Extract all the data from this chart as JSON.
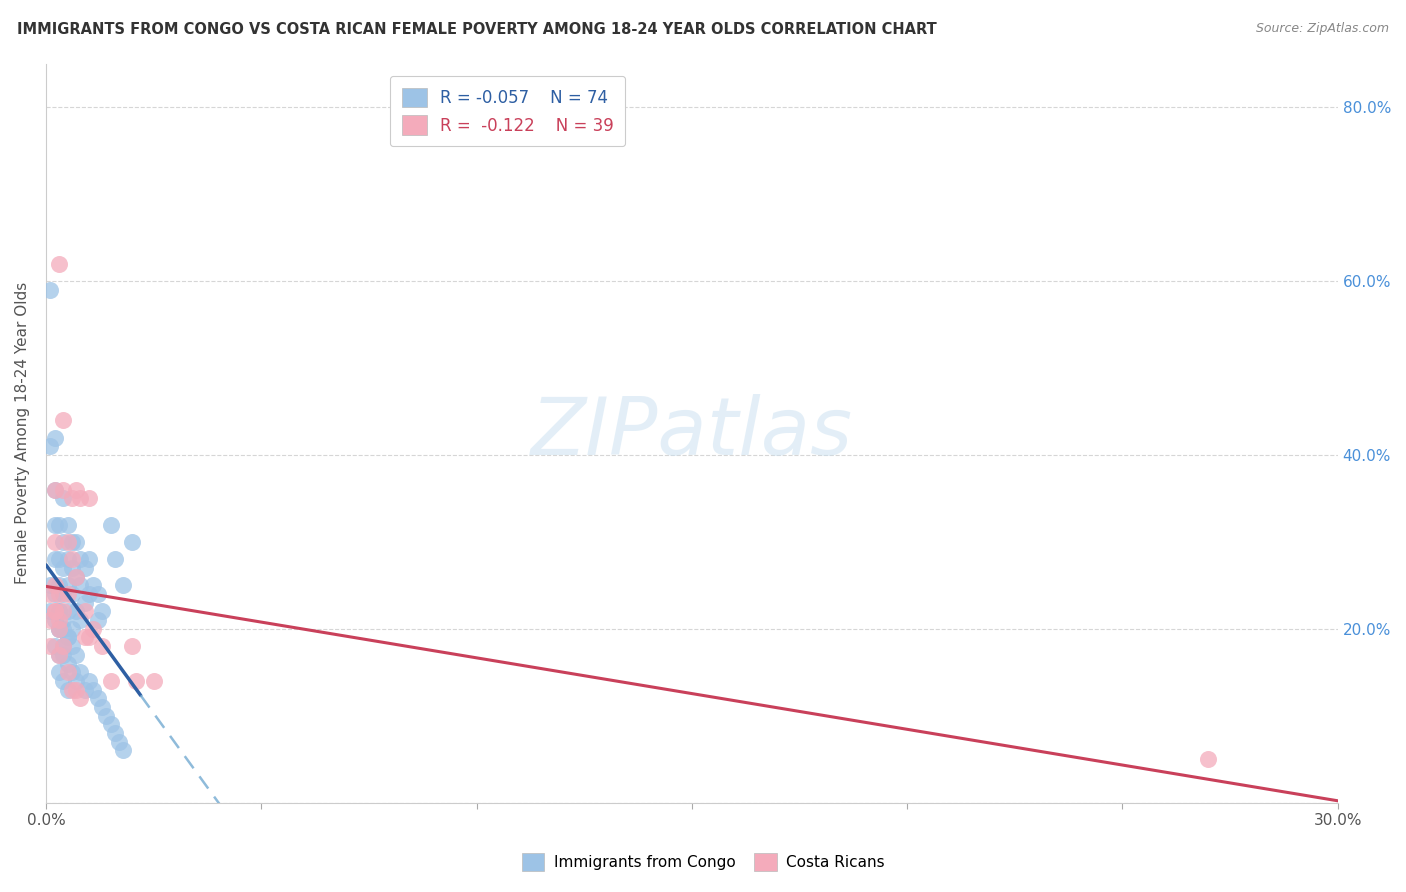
{
  "title": "IMMIGRANTS FROM CONGO VS COSTA RICAN FEMALE POVERTY AMONG 18-24 YEAR OLDS CORRELATION CHART",
  "source": "Source: ZipAtlas.com",
  "ylabel": "Female Poverty Among 18-24 Year Olds",
  "xlim": [
    0.0,
    0.3
  ],
  "ylim": [
    0.0,
    0.85
  ],
  "x_ticks": [
    0.0,
    0.05,
    0.1,
    0.15,
    0.2,
    0.25,
    0.3
  ],
  "y_ticks": [
    0.0,
    0.2,
    0.4,
    0.6,
    0.8
  ],
  "y_tick_labels_right": [
    "",
    "20.0%",
    "40.0%",
    "60.0%",
    "80.0%"
  ],
  "blue_color": "#9DC3E6",
  "pink_color": "#F4ABBB",
  "blue_line_color": "#2E5FA3",
  "pink_line_color": "#C9405A",
  "blue_line_dash_color": "#7BAFD4",
  "watermark_color": "#D8E8F5",
  "watermark_text": "ZIPatlas",
  "congo_x": [
    0.001,
    0.001,
    0.002,
    0.002,
    0.002,
    0.002,
    0.003,
    0.003,
    0.003,
    0.003,
    0.003,
    0.004,
    0.004,
    0.004,
    0.004,
    0.004,
    0.004,
    0.005,
    0.005,
    0.005,
    0.005,
    0.005,
    0.006,
    0.006,
    0.006,
    0.006,
    0.007,
    0.007,
    0.007,
    0.008,
    0.008,
    0.008,
    0.009,
    0.009,
    0.01,
    0.01,
    0.011,
    0.012,
    0.012,
    0.013,
    0.015,
    0.016,
    0.018,
    0.02,
    0.001,
    0.001,
    0.002,
    0.002,
    0.002,
    0.003,
    0.003,
    0.003,
    0.003,
    0.004,
    0.004,
    0.004,
    0.005,
    0.005,
    0.005,
    0.006,
    0.006,
    0.007,
    0.007,
    0.008,
    0.009,
    0.01,
    0.011,
    0.012,
    0.013,
    0.014,
    0.015,
    0.016,
    0.017,
    0.018
  ],
  "congo_y": [
    0.59,
    0.41,
    0.42,
    0.36,
    0.32,
    0.28,
    0.32,
    0.28,
    0.25,
    0.22,
    0.2,
    0.35,
    0.3,
    0.27,
    0.24,
    0.21,
    0.18,
    0.32,
    0.28,
    0.25,
    0.22,
    0.19,
    0.3,
    0.27,
    0.24,
    0.2,
    0.3,
    0.26,
    0.22,
    0.28,
    0.25,
    0.21,
    0.27,
    0.23,
    0.28,
    0.24,
    0.25,
    0.24,
    0.21,
    0.22,
    0.32,
    0.28,
    0.25,
    0.3,
    0.25,
    0.22,
    0.24,
    0.21,
    0.18,
    0.22,
    0.2,
    0.17,
    0.15,
    0.2,
    0.17,
    0.14,
    0.19,
    0.16,
    0.13,
    0.18,
    0.15,
    0.17,
    0.14,
    0.15,
    0.13,
    0.14,
    0.13,
    0.12,
    0.11,
    0.1,
    0.09,
    0.08,
    0.07,
    0.06
  ],
  "costarican_x": [
    0.001,
    0.001,
    0.001,
    0.002,
    0.002,
    0.002,
    0.002,
    0.003,
    0.003,
    0.003,
    0.004,
    0.004,
    0.004,
    0.005,
    0.005,
    0.006,
    0.006,
    0.007,
    0.007,
    0.008,
    0.009,
    0.009,
    0.01,
    0.01,
    0.011,
    0.013,
    0.015,
    0.02,
    0.021,
    0.025,
    0.002,
    0.003,
    0.003,
    0.004,
    0.005,
    0.006,
    0.007,
    0.008,
    0.27
  ],
  "costarican_y": [
    0.24,
    0.21,
    0.18,
    0.36,
    0.3,
    0.25,
    0.22,
    0.62,
    0.24,
    0.21,
    0.44,
    0.36,
    0.22,
    0.3,
    0.24,
    0.35,
    0.28,
    0.36,
    0.26,
    0.35,
    0.22,
    0.19,
    0.35,
    0.19,
    0.2,
    0.18,
    0.14,
    0.18,
    0.14,
    0.14,
    0.22,
    0.2,
    0.17,
    0.18,
    0.15,
    0.13,
    0.13,
    0.12,
    0.05
  ]
}
